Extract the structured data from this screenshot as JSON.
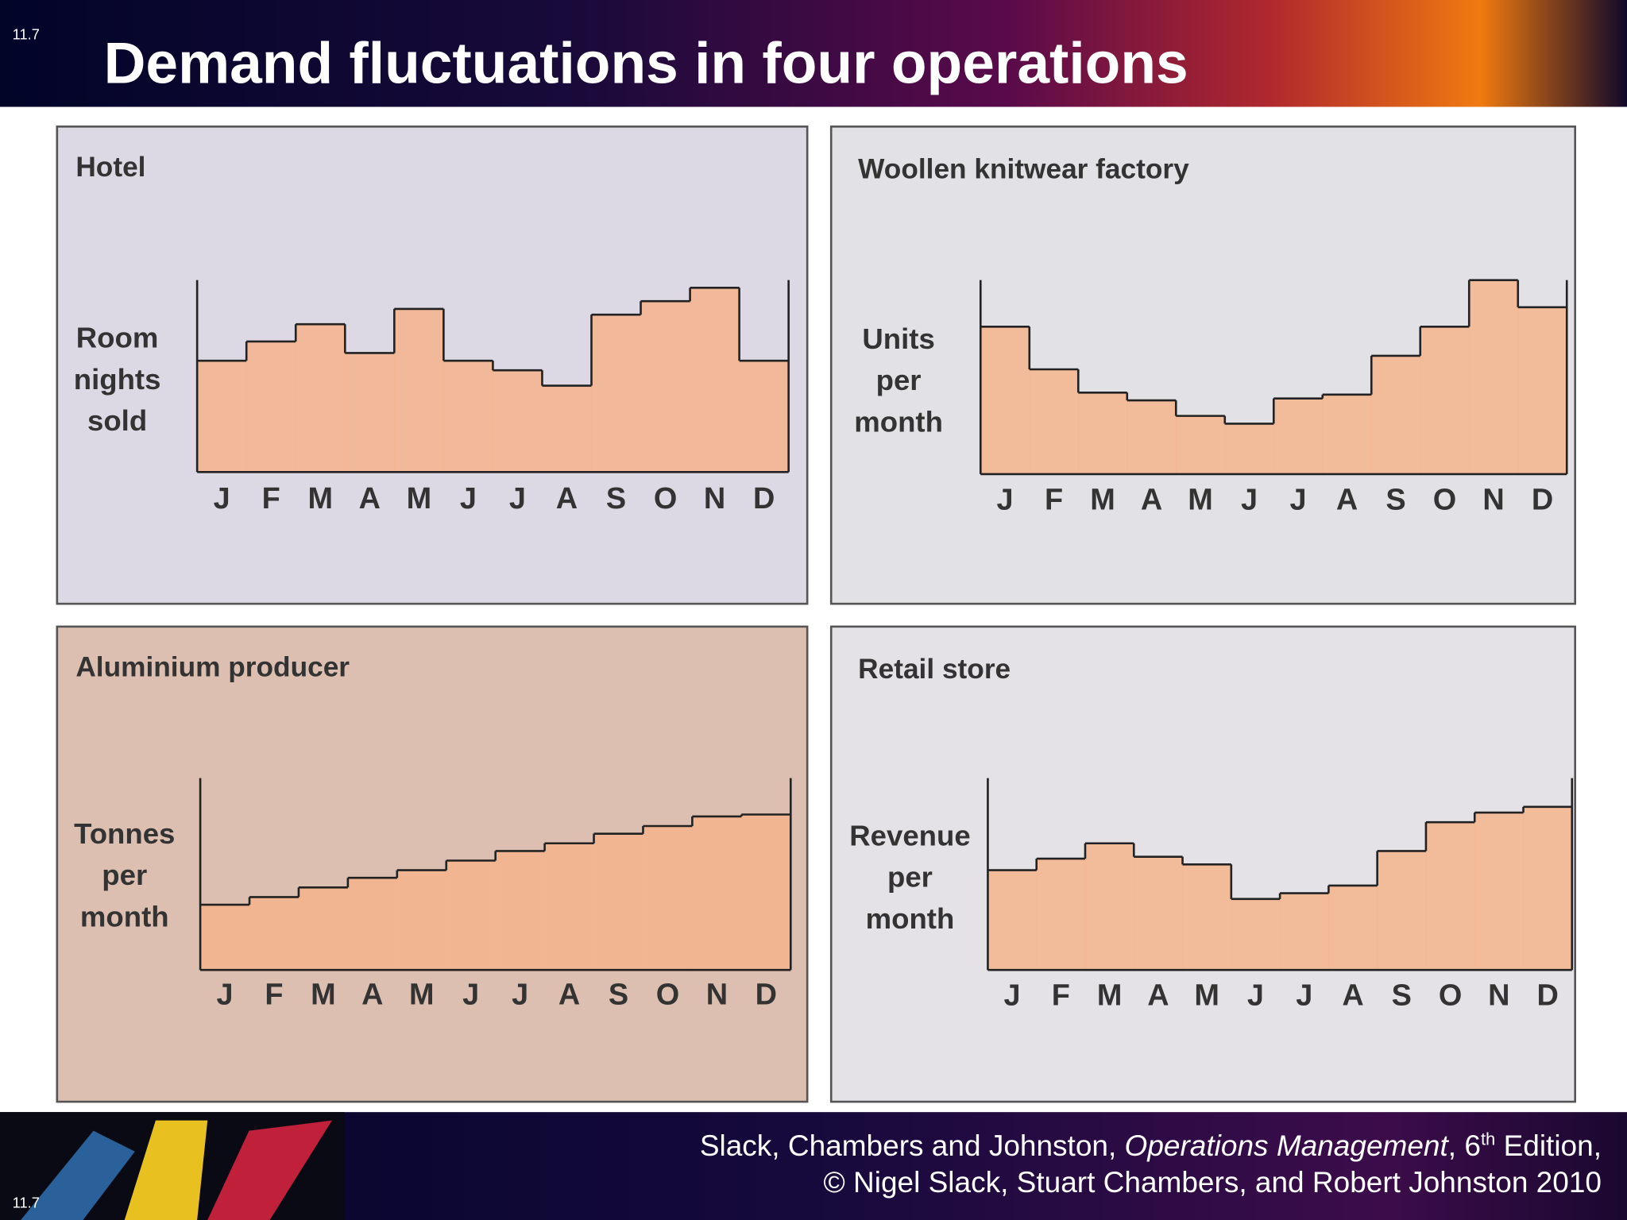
{
  "slide_number": "11.7",
  "title": "Demand fluctuations in four operations",
  "footer": {
    "authors": "Slack, Chambers and Johnston, ",
    "book": "Operations Management",
    "edition_pre": ", 6",
    "edition_sup": "th",
    "edition_post": " Edition,",
    "copyright": "© Nigel Slack, Stuart Chambers, and Robert Johnston 2010"
  },
  "chart_data": [
    {
      "type": "step",
      "title": "Hotel",
      "ylabel": [
        "Room",
        "nights",
        "sold"
      ],
      "color": "#f5b48c",
      "categories": [
        "J",
        "F",
        "M",
        "A",
        "M",
        "J",
        "J",
        "A",
        "S",
        "O",
        "N",
        "D"
      ],
      "values": [
        58,
        68,
        77,
        62,
        85,
        58,
        53,
        45,
        82,
        89,
        96,
        58
      ],
      "ylim": [
        0,
        100
      ]
    },
    {
      "type": "step",
      "title": "Woollen knitwear factory",
      "ylabel": [
        "Units",
        "per",
        "month"
      ],
      "color": "#f5b48c",
      "categories": [
        "J",
        "F",
        "M",
        "A",
        "M",
        "J",
        "J",
        "A",
        "S",
        "O",
        "N",
        "D"
      ],
      "values": [
        76,
        54,
        42,
        38,
        30,
        26,
        39,
        41,
        61,
        76,
        100,
        86
      ],
      "ylim": [
        0,
        100
      ]
    },
    {
      "type": "step",
      "title": "Aluminium producer",
      "ylabel": [
        "Tonnes",
        "per",
        "month"
      ],
      "color": "#f5b48c",
      "categories": [
        "J",
        "F",
        "M",
        "A",
        "M",
        "J",
        "J",
        "A",
        "S",
        "O",
        "N",
        "D"
      ],
      "values": [
        34,
        38,
        43,
        48,
        52,
        57,
        62,
        66,
        71,
        75,
        80,
        81
      ],
      "ylim": [
        0,
        100
      ]
    },
    {
      "type": "step",
      "title": "Retail store",
      "ylabel": [
        "Revenue",
        "per",
        "month"
      ],
      "color": "#f5b48c",
      "categories": [
        "J",
        "F",
        "M",
        "A",
        "M",
        "J",
        "J",
        "A",
        "S",
        "O",
        "N",
        "D"
      ],
      "values": [
        52,
        58,
        66,
        59,
        55,
        37,
        40,
        44,
        62,
        77,
        82,
        85
      ],
      "ylim": [
        0,
        100
      ]
    }
  ]
}
